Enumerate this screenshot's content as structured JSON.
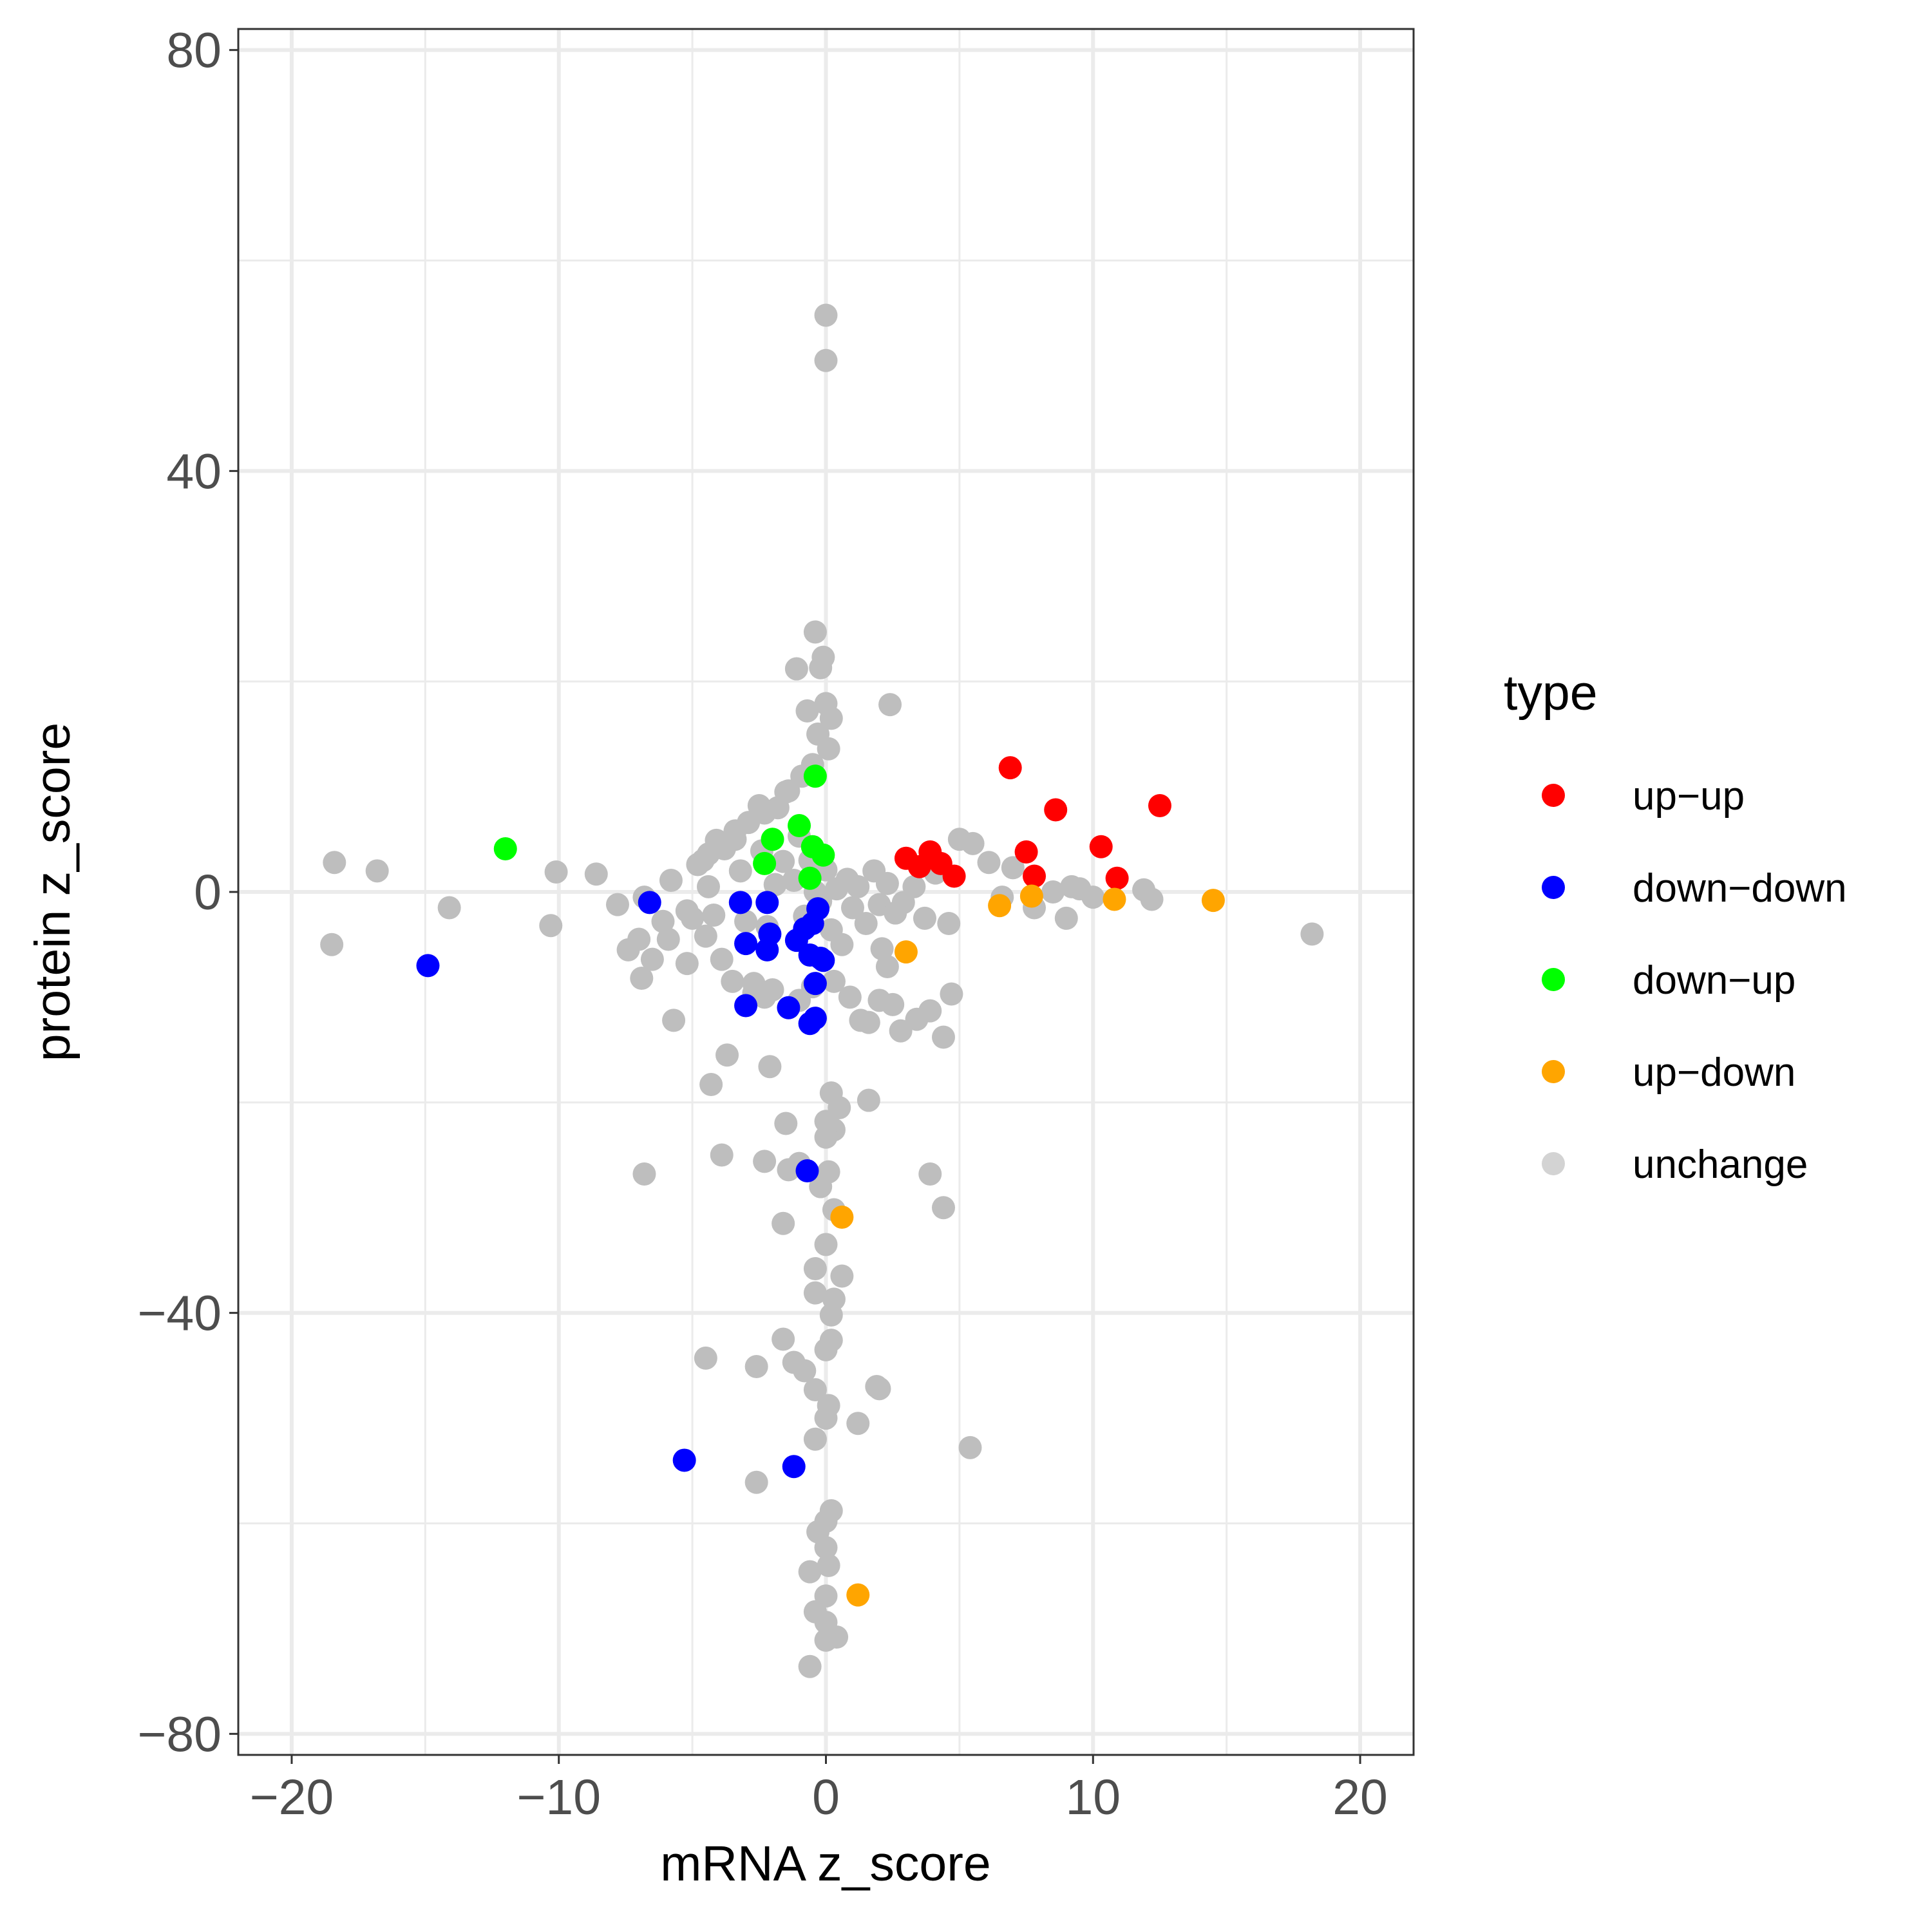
{
  "chart_data": {
    "type": "scatter",
    "title": "",
    "xlabel": "mRNA z_score",
    "ylabel": "protein z_score",
    "xlim": [
      -22,
      22
    ],
    "ylim": [
      -82,
      82
    ],
    "x_ticks": [
      -20,
      -10,
      0,
      10,
      20
    ],
    "x_tick_labels": [
      "−20",
      "−10",
      "0",
      "10",
      "20"
    ],
    "y_ticks": [
      -80,
      -40,
      0,
      40,
      80
    ],
    "y_tick_labels": [
      "−80",
      "−40",
      "0",
      "40",
      "80"
    ],
    "grid": true,
    "legend": {
      "title": "type",
      "placement": "right",
      "entries": [
        {
          "name": "up−up",
          "color": "#FF0000"
        },
        {
          "name": "down−down",
          "color": "#0000FF"
        },
        {
          "name": "down−up",
          "color": "#00FF00"
        },
        {
          "name": "up−down",
          "color": "#FFA500"
        },
        {
          "name": "unchange",
          "color": "#D3D3D3"
        }
      ]
    },
    "series": [
      {
        "name": "unchange",
        "color": "#BEBEBE",
        "x": [
          0.0,
          0.0,
          -18.4,
          -16.8,
          -18.5,
          -14.1,
          -10.3,
          -10.1,
          -8.6,
          -7.8,
          -7.4,
          -7.0,
          -6.5,
          -6.9,
          -6.8,
          -6.1,
          -5.9,
          -5.2,
          -5.0,
          -4.8,
          -4.6,
          -4.4,
          -4.2,
          -3.8,
          -3.4,
          -3.2,
          -3.0,
          -2.7,
          -2.5,
          -2.4,
          -2.2,
          -1.9,
          -1.6,
          -1.4,
          -1.2,
          -1.0,
          -0.8,
          -0.6,
          -0.4,
          -0.2,
          0.0,
          0.2,
          0.4,
          0.6,
          0.8,
          1.0,
          1.2,
          1.5,
          1.8,
          2.0,
          2.3,
          2.6,
          2.9,
          3.3,
          3.7,
          4.1,
          4.6,
          5.0,
          5.5,
          6.1,
          6.6,
          7.0,
          7.8,
          8.5,
          9.0,
          9.5,
          9.2,
          10.0,
          11.9,
          12.2,
          18.2,
          -1.1,
          -0.4,
          -0.1,
          -0.2,
          0.0,
          0.2,
          -0.7,
          2.4,
          -0.3,
          0.1,
          -0.5,
          -0.9,
          -1.5,
          -1.8,
          -2.3,
          -2.9,
          -3.4,
          -4.1,
          -4.4,
          -5.8,
          -5.2,
          -4.5,
          -3.9,
          -3.5,
          -2.3,
          -2.7,
          -2.0,
          -1.0,
          -0.5,
          0.3,
          0.9,
          1.3,
          1.6,
          2.0,
          2.5,
          2.8,
          3.4,
          3.9,
          4.4,
          4.7,
          2.3,
          2.1,
          -2.1,
          -3.7,
          -5.7,
          -4.3,
          -3.9,
          -6.8,
          -2.3,
          -1.5,
          -1.4,
          -1.0,
          0.0,
          0.2,
          0.5,
          0.3,
          0.1,
          -0.2,
          0.0,
          1.6,
          3.9,
          4.4,
          -1.6,
          0.3,
          0.0,
          -0.4,
          0.6,
          0.2,
          0.3,
          -0.4,
          -4.5,
          -2.6,
          -1.6,
          0.2,
          0.0,
          1.9,
          -0.8,
          -0.4,
          0.1,
          0.0,
          1.2,
          2.0,
          5.4,
          -2.6,
          -0.4,
          0.2,
          0.0,
          -0.3,
          0.0,
          0.1,
          -0.6,
          0.0,
          -0.4,
          0.0,
          0.4,
          0.0,
          -0.6,
          -1.2
        ],
        "y": [
          54.8,
          50.5,
          2.8,
          2.0,
          -5.0,
          -1.5,
          -3.2,
          1.9,
          1.7,
          -1.2,
          -5.5,
          -4.5,
          -6.4,
          -8.2,
          -0.5,
          -2.8,
          -4.5,
          -6.8,
          -2.5,
          2.6,
          3.0,
          0.5,
          -2.2,
          4.1,
          5.0,
          2.0,
          -2.8,
          -9.6,
          8.2,
          3.9,
          -3.3,
          0.7,
          2.9,
          9.6,
          1.1,
          5.3,
          -2.3,
          3.0,
          0.0,
          -0.9,
          2.1,
          -3.6,
          0.3,
          -5.0,
          1.2,
          -1.5,
          0.5,
          -3.0,
          2.0,
          -1.2,
          0.8,
          -2.0,
          -1.0,
          0.5,
          -2.5,
          1.8,
          -3.0,
          5.0,
          4.6,
          2.8,
          -0.5,
          2.3,
          -1.5,
          0.0,
          -2.5,
          0.3,
          0.5,
          -0.5,
          0.2,
          -0.7,
          -4.0,
          21.2,
          24.7,
          22.3,
          21.3,
          17.9,
          16.5,
          17.2,
          17.8,
          15.0,
          13.6,
          12.1,
          11.0,
          9.5,
          8.0,
          7.5,
          6.6,
          5.8,
          4.9,
          3.6,
          1.1,
          -1.8,
          -4.2,
          -6.4,
          -8.5,
          -10.0,
          -8.7,
          -9.3,
          -10.3,
          -9.0,
          -8.5,
          -10.0,
          -12.2,
          -12.4,
          -10.3,
          -10.7,
          -13.2,
          -12.1,
          -11.3,
          -13.8,
          -9.7,
          -7.1,
          -5.4,
          -16.6,
          -15.5,
          -12.2,
          -18.3,
          -25.0,
          -26.8,
          -25.6,
          -22.0,
          -26.4,
          -25.8,
          -21.8,
          -19.1,
          -20.5,
          -22.6,
          -26.6,
          -28.0,
          -23.3,
          -19.8,
          -26.8,
          -30.0,
          -31.5,
          -30.2,
          -33.5,
          -35.8,
          -36.5,
          -40.2,
          -38.7,
          -38.1,
          -44.3,
          -45.1,
          -42.5,
          -42.6,
          -43.5,
          -47.0,
          -45.5,
          -47.3,
          -48.8,
          -50.0,
          -50.5,
          -47.2,
          -52.8,
          -56.1,
          -52.0,
          -58.8,
          -59.8,
          -60.8,
          -62.3,
          -64.0,
          -64.6,
          -66.9,
          -68.4,
          -69.4,
          -70.8,
          -71.1,
          -73.6,
          -44.7
        ]
      },
      {
        "name": "up−up",
        "color": "#FF0000",
        "x": [
          6.9,
          8.6,
          12.5,
          10.3,
          10.9,
          7.5,
          7.8,
          3.0,
          3.9,
          4.3,
          4.8,
          3.5
        ],
        "y": [
          11.8,
          7.8,
          8.2,
          4.3,
          1.3,
          3.8,
          1.5,
          3.2,
          3.8,
          2.7,
          1.5,
          2.4
        ]
      },
      {
        "name": "down−down",
        "color": "#0000FF",
        "x": [
          -6.6,
          -14.9,
          -3.2,
          -2.2,
          -3.0,
          -2.1,
          -2.2,
          -1.1,
          -0.3,
          -0.5,
          -0.8,
          -0.6,
          -0.2,
          -0.1,
          -0.4,
          -3.0,
          -1.4,
          -0.6,
          -0.4,
          -0.7,
          -5.3,
          -1.2
        ],
        "y": [
          -1.0,
          -7.0,
          -1.0,
          -1.0,
          -4.9,
          -4.0,
          -5.5,
          -4.6,
          -1.6,
          -3.0,
          -3.5,
          -6.0,
          -6.3,
          -6.5,
          -8.7,
          -10.8,
          -11.0,
          -12.5,
          -12.0,
          -26.5,
          -54.0,
          -54.6
        ]
      },
      {
        "name": "down−up",
        "color": "#00FF00",
        "x": [
          -12.0,
          -0.4,
          -1.0,
          -2.0,
          -2.3,
          -0.5,
          -0.1,
          -0.6
        ],
        "y": [
          4.1,
          11.0,
          6.3,
          5.0,
          2.7,
          4.3,
          3.5,
          1.3
        ]
      },
      {
        "name": "up−down",
        "color": "#FFA500",
        "x": [
          14.5,
          10.8,
          6.5,
          7.7,
          0.6,
          3.0,
          1.2
        ],
        "y": [
          -0.8,
          -0.7,
          -1.3,
          -0.4,
          -30.9,
          -5.7,
          -66.8
        ]
      }
    ]
  }
}
